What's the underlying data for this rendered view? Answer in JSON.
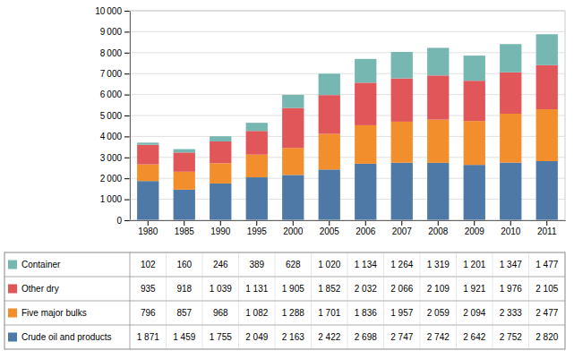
{
  "chart_data": {
    "type": "bar",
    "stacked": true,
    "grid": true,
    "categories": [
      "1980",
      "1985",
      "1990",
      "1995",
      "2000",
      "2005",
      "2006",
      "2007",
      "2008",
      "2009",
      "2010",
      "2011"
    ],
    "ylim": [
      0,
      10000
    ],
    "yticks": [
      0,
      {
        "value": 1000,
        "label": "1 000"
      },
      {
        "value": 2000,
        "label": "2 000"
      },
      {
        "value": 3000,
        "label": "3 000"
      },
      {
        "value": 4000,
        "label": "4 000"
      },
      {
        "value": 5000,
        "label": "5 000"
      },
      {
        "value": 6000,
        "label": "6 000"
      },
      {
        "value": 7000,
        "label": "7 000"
      },
      {
        "value": 8000,
        "label": "8 000"
      },
      {
        "value": 9000,
        "label": "9 000"
      },
      {
        "value": 10000,
        "label": "10 000"
      }
    ],
    "series": [
      {
        "name": "Crude oil and products",
        "values": [
          1871,
          1459,
          1755,
          2049,
          2163,
          2422,
          2698,
          2747,
          2742,
          2642,
          2752,
          2820
        ],
        "value_labels": [
          "1 871",
          "1 459",
          "1 755",
          "2 049",
          "2 163",
          "2 422",
          "2 698",
          "2 747",
          "2 742",
          "2 642",
          "2 752",
          "2 820"
        ]
      },
      {
        "name": "Five major bulks",
        "values": [
          796,
          857,
          968,
          1082,
          1288,
          1701,
          1836,
          1957,
          2059,
          2094,
          2333,
          2477
        ],
        "value_labels": [
          "796",
          "857",
          "968",
          "1 082",
          "1 288",
          "1 701",
          "1 836",
          "1 957",
          "2 059",
          "2 094",
          "2 333",
          "2 477"
        ]
      },
      {
        "name": "Other dry",
        "values": [
          935,
          918,
          1039,
          1131,
          1905,
          1852,
          2032,
          2066,
          2109,
          1921,
          1976,
          2105
        ],
        "value_labels": [
          "935",
          "918",
          "1 039",
          "1 131",
          "1 905",
          "1 852",
          "2 032",
          "2 066",
          "2 109",
          "1 921",
          "1 976",
          "2 105"
        ]
      },
      {
        "name": "Container",
        "values": [
          102,
          160,
          246,
          389,
          628,
          1020,
          1134,
          1264,
          1319,
          1201,
          1347,
          1477
        ],
        "value_labels": [
          "102",
          "160",
          "246",
          "389",
          "628",
          "1 020",
          "1 134",
          "1 264",
          "1 319",
          "1 201",
          "1 347",
          "1 477"
        ]
      }
    ]
  }
}
